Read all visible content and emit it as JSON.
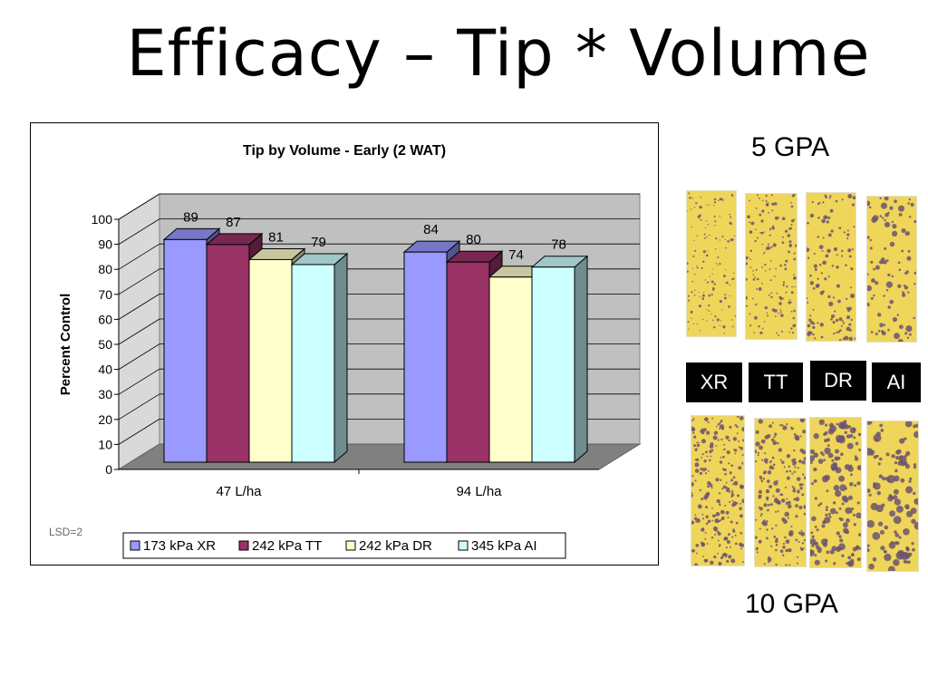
{
  "slide_title": "Efficacy – Tip * Volume",
  "labels": {
    "gpa_top": "5 GPA",
    "gpa_bottom": "10 GPA",
    "tips": [
      "XR",
      "TT",
      "DR",
      "AI"
    ]
  },
  "colors": {
    "series": [
      "#9999ff",
      "#993366",
      "#ffffcc",
      "#ccffff"
    ],
    "card_yellow": "#efd55a",
    "card_spot": "#6b5470"
  },
  "chart_data": {
    "type": "bar",
    "title": "Tip by Volume - Early (2 WAT)",
    "ylabel": "Percent Control",
    "xlabel": "",
    "categories": [
      "47 L/ha",
      "94 L/ha"
    ],
    "series": [
      {
        "name": "173 kPa XR",
        "values": [
          89,
          84
        ]
      },
      {
        "name": "242 kPa TT",
        "values": [
          87,
          80
        ]
      },
      {
        "name": "242 kPa DR",
        "values": [
          81,
          74
        ]
      },
      {
        "name": "345 kPa AI",
        "values": [
          79,
          78
        ]
      }
    ],
    "ylim": [
      0,
      100
    ],
    "yticks": [
      "0",
      "10",
      "20",
      "30",
      "40",
      "50",
      "60",
      "70",
      "80",
      "90",
      "100"
    ],
    "grid": true,
    "legend_position": "bottom",
    "annotation": "LSD=2"
  }
}
